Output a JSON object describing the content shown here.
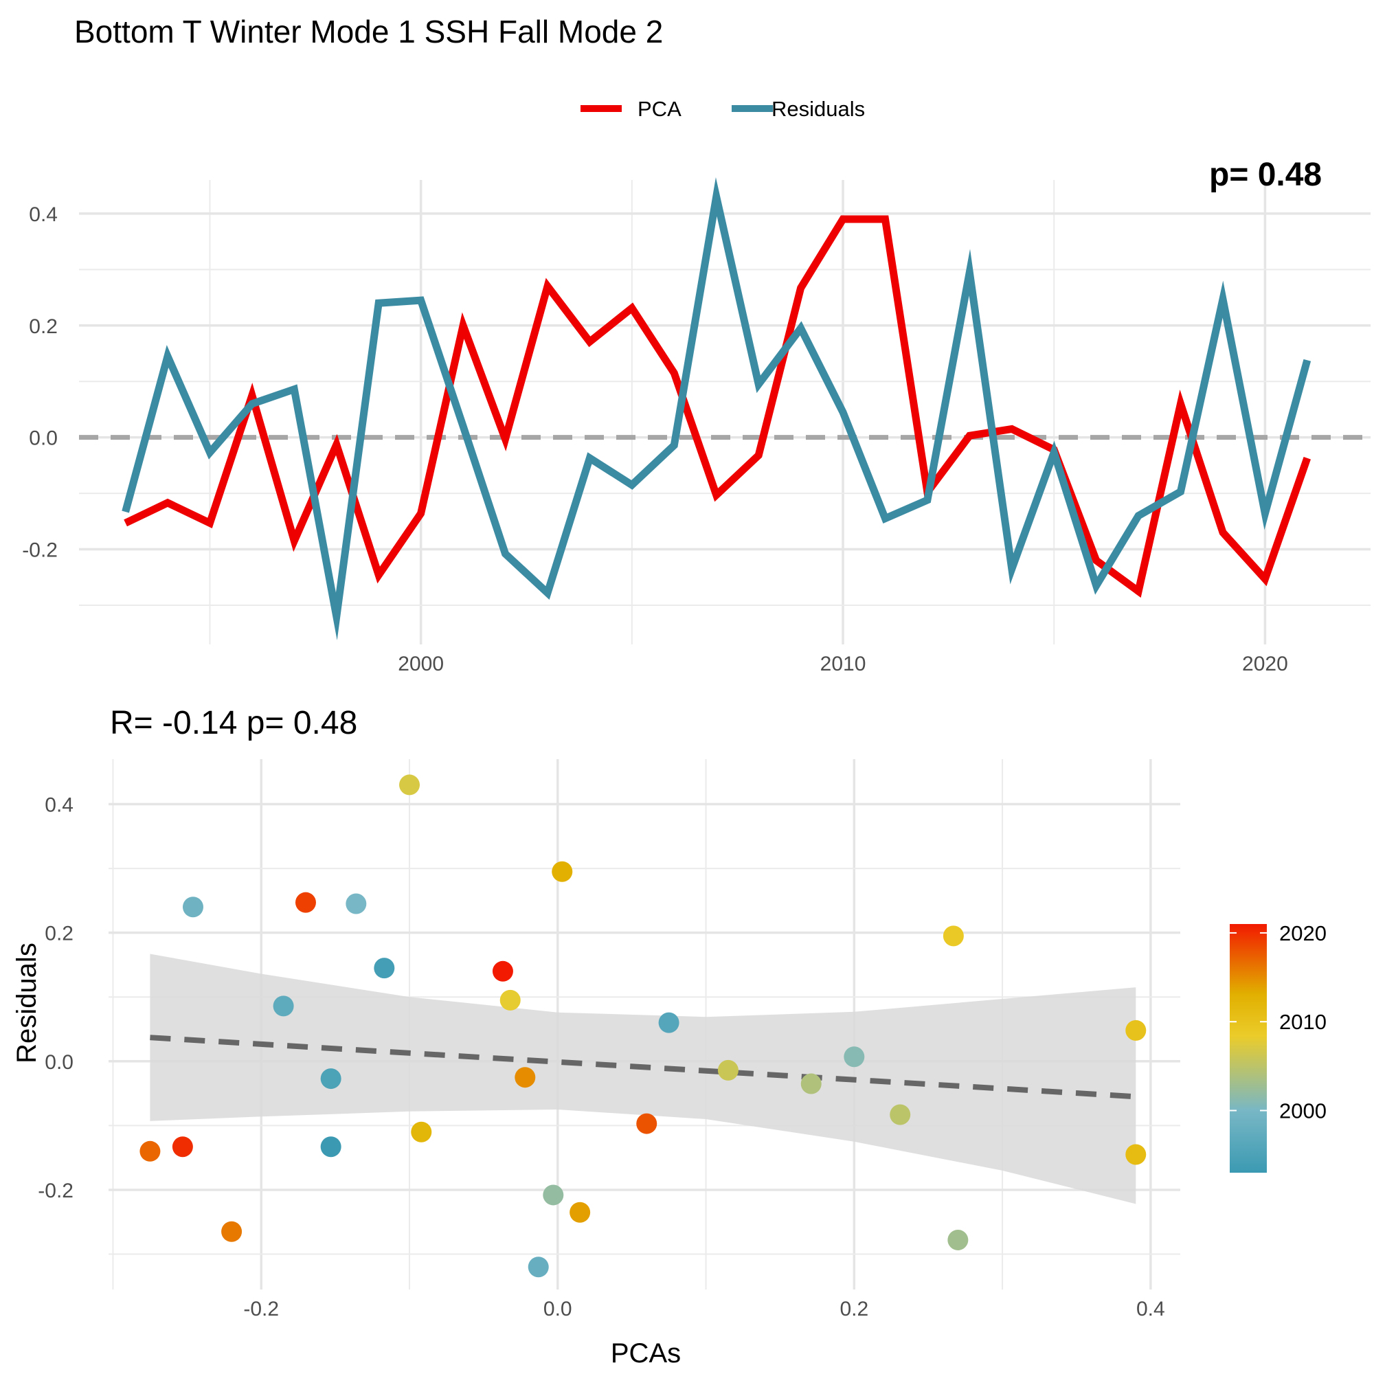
{
  "title": "Bottom T Winter Mode 1 SSH Fall Mode 2",
  "chart_data": [
    {
      "type": "line",
      "legend": {
        "position": "top",
        "items": [
          "PCA",
          "Residuals"
        ]
      },
      "colors": {
        "PCA": "#EE0000",
        "Residuals": "#3B8BA3",
        "zero_line": "#A6A6A6"
      },
      "annotation_clipped": "p= 0.48",
      "x": [
        1993,
        1994,
        1995,
        1996,
        1997,
        1998,
        1999,
        2000,
        2001,
        2002,
        2003,
        2004,
        2005,
        2006,
        2007,
        2008,
        2009,
        2010,
        2011,
        2012,
        2013,
        2014,
        2015,
        2016,
        2017,
        2018,
        2019,
        2020,
        2021
      ],
      "xlim": [
        1991.9,
        2022.5
      ],
      "ylim": [
        -0.37,
        0.46
      ],
      "x_ticks": [
        2000,
        2010,
        2020
      ],
      "x_tick_labels": [
        "2000",
        "2010",
        "2020"
      ],
      "y_ticks": [
        -0.2,
        0.0,
        0.2,
        0.4
      ],
      "y_tick_labels": [
        "-0.2",
        "0.0",
        "0.2",
        "0.4"
      ],
      "grid": true,
      "zero_line": {
        "y": 0,
        "style": "dashed"
      },
      "series": [
        {
          "name": "PCA",
          "values": [
            -0.153,
            -0.117,
            -0.153,
            0.075,
            -0.185,
            -0.013,
            -0.246,
            -0.136,
            0.2,
            -0.003,
            0.27,
            0.171,
            0.231,
            0.115,
            -0.103,
            -0.032,
            0.267,
            0.39,
            0.39,
            -0.098,
            0.003,
            0.015,
            -0.022,
            -0.22,
            -0.275,
            0.06,
            -0.17,
            -0.253,
            -0.037
          ]
        },
        {
          "name": "Residuals",
          "values": [
            -0.133,
            0.145,
            -0.027,
            0.06,
            0.086,
            -0.32,
            0.24,
            0.245,
            0.02,
            -0.208,
            -0.278,
            -0.037,
            -0.085,
            -0.014,
            0.43,
            0.095,
            0.195,
            0.045,
            -0.145,
            -0.112,
            0.295,
            -0.235,
            -0.027,
            -0.265,
            -0.14,
            -0.097,
            0.247,
            -0.136,
            0.138
          ]
        }
      ]
    },
    {
      "type": "scatter",
      "subtitle": "R= -0.14  p= 0.48",
      "xlabel": "PCAs",
      "ylabel": "Residuals",
      "xlim": [
        -0.303,
        0.42
      ],
      "ylim": [
        -0.355,
        0.47
      ],
      "x_ticks": [
        -0.2,
        0.0,
        0.2,
        0.4
      ],
      "x_tick_labels": [
        "-0.2",
        "0.0",
        "0.2",
        "0.4"
      ],
      "y_ticks": [
        -0.2,
        0.0,
        0.2,
        0.4
      ],
      "y_tick_labels": [
        "-0.2",
        "0.0",
        "0.2",
        "0.4"
      ],
      "grid": true,
      "colorbar": {
        "ticks": [
          2000,
          2010,
          2020
        ],
        "tick_labels": [
          "2000",
          "2010",
          "2020"
        ],
        "range": [
          1993,
          2021
        ],
        "position": "right",
        "gradient": [
          "#3B9AB2",
          "#78B7C5",
          "#EBCC2A",
          "#E1AF00",
          "#F21A00"
        ]
      },
      "fit_line": {
        "style": "dashed",
        "x": [
          -0.275,
          0.39
        ],
        "y": [
          0.037,
          -0.055
        ],
        "color": "#666666"
      },
      "confidence_band": {
        "x": [
          -0.275,
          -0.2,
          -0.1,
          0.0,
          0.1,
          0.2,
          0.3,
          0.39
        ],
        "upper": [
          0.167,
          0.136,
          0.1,
          0.076,
          0.069,
          0.077,
          0.097,
          0.115
        ],
        "lower": [
          -0.093,
          -0.086,
          -0.078,
          -0.075,
          -0.09,
          -0.125,
          -0.17,
          -0.222
        ],
        "color": "#D9D9D9"
      },
      "points": [
        {
          "year": 1993,
          "x": -0.153,
          "y": -0.133
        },
        {
          "year": 1994,
          "x": -0.117,
          "y": 0.145
        },
        {
          "year": 1995,
          "x": -0.153,
          "y": -0.027
        },
        {
          "year": 1996,
          "x": 0.075,
          "y": 0.06
        },
        {
          "year": 1997,
          "x": -0.185,
          "y": 0.086
        },
        {
          "year": 1998,
          "x": -0.013,
          "y": -0.32
        },
        {
          "year": 1999,
          "x": -0.246,
          "y": 0.24
        },
        {
          "year": 2000,
          "x": -0.136,
          "y": 0.245
        },
        {
          "year": 2001,
          "x": 0.2,
          "y": 0.007
        },
        {
          "year": 2002,
          "x": -0.003,
          "y": -0.208
        },
        {
          "year": 2003,
          "x": 0.27,
          "y": -0.278
        },
        {
          "year": 2004,
          "x": 0.171,
          "y": -0.035
        },
        {
          "year": 2005,
          "x": 0.231,
          "y": -0.083
        },
        {
          "year": 2006,
          "x": 0.115,
          "y": -0.014
        },
        {
          "year": 2007,
          "x": -0.1,
          "y": 0.43
        },
        {
          "year": 2008,
          "x": -0.032,
          "y": 0.095
        },
        {
          "year": 2009,
          "x": 0.267,
          "y": 0.195
        },
        {
          "year": 2010,
          "x": 0.39,
          "y": 0.048
        },
        {
          "year": 2011,
          "x": 0.39,
          "y": -0.145
        },
        {
          "year": 2012,
          "x": -0.092,
          "y": -0.11
        },
        {
          "year": 2013,
          "x": 0.003,
          "y": 0.295
        },
        {
          "year": 2014,
          "x": 0.015,
          "y": -0.235
        },
        {
          "year": 2015,
          "x": -0.022,
          "y": -0.025
        },
        {
          "year": 2016,
          "x": -0.22,
          "y": -0.265
        },
        {
          "year": 2017,
          "x": -0.275,
          "y": -0.14
        },
        {
          "year": 2018,
          "x": 0.06,
          "y": -0.097
        },
        {
          "year": 2019,
          "x": -0.17,
          "y": 0.247
        },
        {
          "year": 2020,
          "x": -0.253,
          "y": -0.133
        },
        {
          "year": 2021,
          "x": -0.037,
          "y": 0.14
        }
      ]
    }
  ]
}
